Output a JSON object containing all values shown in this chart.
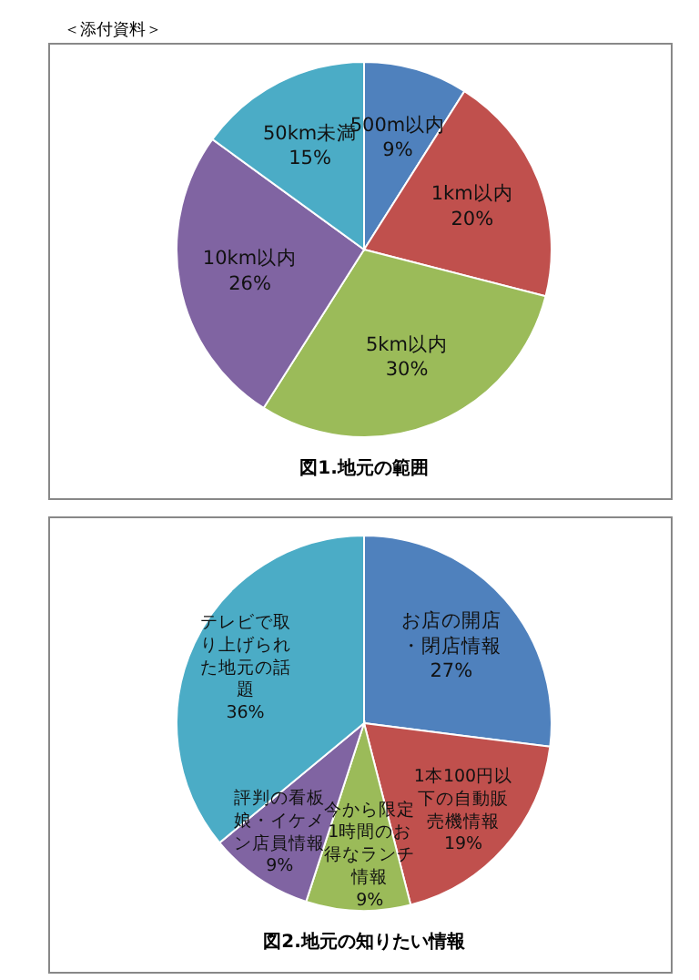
{
  "chart_data": [
    {
      "type": "pie",
      "title": "図1.地元の範囲",
      "annotations": [
        "＜添付資料＞"
      ],
      "data_labels": true,
      "categories": [
        "500m以内",
        "1km以内",
        "5km以内",
        "10km以内",
        "50km未満"
      ],
      "values": [
        9,
        20,
        30,
        26,
        15
      ],
      "value_labels": [
        "9%",
        "20%",
        "30%",
        "26%",
        "15%"
      ],
      "colors": [
        "#4f81bd",
        "#c0504d",
        "#9bbb59",
        "#8064a2",
        "#4bacc6"
      ]
    },
    {
      "type": "pie",
      "title": "図2.地元の知りたい情報",
      "data_labels": true,
      "categories": [
        "お店の開店・閉店情報",
        "1本100円以下の自動販売機情報",
        "今から限定1時間のお得なランチ情報",
        "評判の看板娘・イケメン店員情報",
        "テレビで取り上げられた地元の話題"
      ],
      "values": [
        27,
        19,
        9,
        9,
        36
      ],
      "value_labels": [
        "27%",
        "19%",
        "9%",
        "9%",
        "36%"
      ],
      "colors": [
        "#4f81bd",
        "#c0504d",
        "#9bbb59",
        "#8064a2",
        "#4bacc6"
      ]
    }
  ]
}
